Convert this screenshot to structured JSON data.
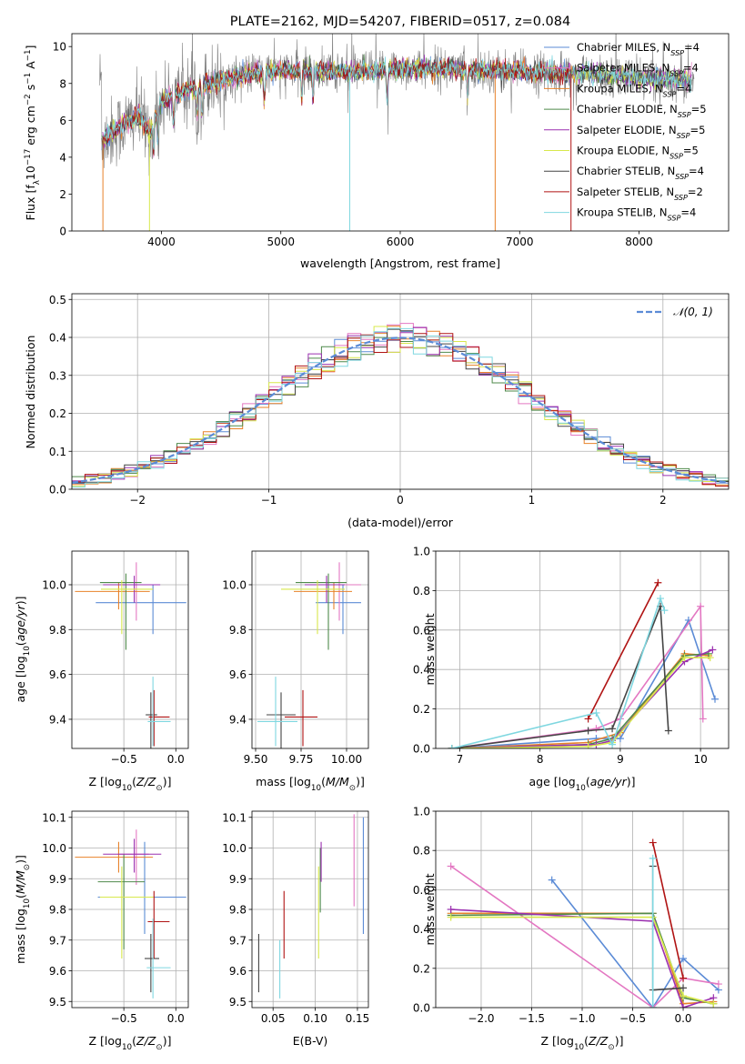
{
  "colors": {
    "Chabrier MILES": "#5b8bd6",
    "Salpeter MILES": "#e377c2",
    "Kroupa MILES": "#e8822a",
    "Chabrier ELODIE": "#4f8a4b",
    "Salpeter ELODIE": "#9b30b0",
    "Kroupa ELODIE": "#d8e84c",
    "Chabrier STELIB": "#444444",
    "Salpeter STELIB": "#b01313",
    "Kroupa STELIB": "#7fd7e0",
    "data": "#808080",
    "gaussian": "#5b8bd6",
    "grid": "#b0b0b0"
  },
  "chart_data": [
    {
      "id": "spectrum",
      "type": "line",
      "title": "PLATE=2162, MJD=54207, FIBERID=0517, z=0.084",
      "xlabel": "wavelength [Angstrom, rest frame]",
      "ylabel": "Flux [f_λ10^-17 erg cm^-2 s^-1 A^-1]",
      "xlim": [
        3250,
        8750
      ],
      "ylim": [
        0,
        10.7
      ],
      "xticks": [
        4000,
        5000,
        6000,
        7000,
        8000
      ],
      "yticks": [
        0,
        2,
        4,
        6,
        8,
        10
      ],
      "grid": false,
      "legend_position": "top-right",
      "legend": [
        {
          "model": "Chabrier MILES",
          "nssp": "4"
        },
        {
          "model": "Salpeter MILES",
          "nssp": "4"
        },
        {
          "model": "Kroupa MILES",
          "nssp": "4"
        },
        {
          "model": "Chabrier ELODIE",
          "nssp": "5"
        },
        {
          "model": "Salpeter ELODIE",
          "nssp": "5"
        },
        {
          "model": "Kroupa ELODIE",
          "nssp": "5"
        },
        {
          "model": "Chabrier STELIB",
          "nssp": "4"
        },
        {
          "model": "Salpeter STELIB",
          "nssp": "2"
        },
        {
          "model": "Kroupa STELIB",
          "nssp": "4"
        }
      ],
      "continuum": {
        "x": [
          3500,
          3600,
          3700,
          3800,
          3900,
          4000,
          4100,
          4200,
          4300,
          4500,
          4700,
          5000,
          5300,
          5600,
          6000,
          6400,
          6800,
          7200,
          7600,
          8000,
          8400
        ],
        "y": [
          4.9,
          5.4,
          5.8,
          6.3,
          5.4,
          7.0,
          7.3,
          7.6,
          7.8,
          8.2,
          8.5,
          8.7,
          8.7,
          8.6,
          8.8,
          8.8,
          8.7,
          8.6,
          8.5,
          8.3,
          8.2
        ]
      },
      "data_series_x_range": [
        3480,
        8460
      ]
    },
    {
      "id": "residual_histogram",
      "type": "bar",
      "xlabel": "(data-model)/error",
      "ylabel": "Normed distribution",
      "xlim": [
        -2.5,
        2.5
      ],
      "ylim": [
        0,
        0.515
      ],
      "xticks": [
        -2,
        -1,
        0,
        1,
        2
      ],
      "xtick_labels": [
        "−2",
        "−1",
        "0",
        "1",
        "2"
      ],
      "yticks": [
        0.0,
        0.1,
        0.2,
        0.3,
        0.4,
        0.5
      ],
      "grid": true,
      "legend_position": "top-right",
      "legend": [
        "𝒩(0, 1)"
      ],
      "bin_width": 0.1,
      "gaussian": {
        "mean": 0,
        "sigma": 1
      }
    },
    {
      "id": "age_vs_Z",
      "type": "scatter",
      "xlabel": "Z [log10(Z/Z_⊙)]",
      "ylabel": "age  [log10(age/yr)]",
      "xlim": [
        -1.0,
        0.12
      ],
      "ylim": [
        9.27,
        10.15
      ],
      "xticks": [
        -0.5,
        0.0
      ],
      "xtick_labels": [
        "−0.5",
        "0.0"
      ],
      "yticks": [
        9.4,
        9.6,
        9.8,
        10.0
      ],
      "grid": true,
      "points": [
        {
          "series": "Chabrier MILES",
          "x": -0.22,
          "y": 9.92,
          "xerr": [
            0.55,
            0.32
          ],
          "yerr": [
            0.14,
            0.08
          ]
        },
        {
          "series": "Salpeter MILES",
          "x": -0.38,
          "y": 10.0,
          "xerr": [
            0.18,
            0.12
          ],
          "yerr": [
            0.16,
            0.1
          ]
        },
        {
          "series": "Kroupa MILES",
          "x": -0.55,
          "y": 9.97,
          "xerr": [
            0.42,
            0.3
          ],
          "yerr": [
            0.08,
            0.04
          ]
        },
        {
          "series": "Chabrier ELODIE",
          "x": -0.48,
          "y": 10.01,
          "xerr": [
            0.25,
            0.15
          ],
          "yerr": [
            0.3,
            0.04
          ]
        },
        {
          "series": "Salpeter ELODIE",
          "x": -0.4,
          "y": 10.0,
          "xerr": [
            0.3,
            0.25
          ],
          "yerr": [
            0.08,
            0.04
          ]
        },
        {
          "series": "Kroupa ELODIE",
          "x": -0.52,
          "y": 9.98,
          "xerr": [
            0.2,
            0.3
          ],
          "yerr": [
            0.2,
            0.04
          ]
        },
        {
          "series": "Chabrier STELIB",
          "x": -0.24,
          "y": 9.42,
          "xerr": [
            0.05,
            0.06
          ],
          "yerr": [
            0.16,
            0.1
          ]
        },
        {
          "series": "Salpeter STELIB",
          "x": -0.21,
          "y": 9.41,
          "xerr": [
            0.05,
            0.15
          ],
          "yerr": [
            0.13,
            0.12
          ]
        },
        {
          "series": "Kroupa STELIB",
          "x": -0.22,
          "y": 9.39,
          "xerr": [
            0.05,
            0.17
          ],
          "yerr": [
            0.11,
            0.2
          ]
        }
      ]
    },
    {
      "id": "age_vs_mass",
      "type": "scatter",
      "xlabel": "mass [log10(M/M_⊙)]",
      "ylabel": "",
      "xlim": [
        9.48,
        10.12
      ],
      "ylim": [
        9.27,
        10.15
      ],
      "xticks": [
        9.5,
        9.75,
        10.0
      ],
      "xtick_labels": [
        "9.50",
        "9.75",
        "10.00"
      ],
      "yticks": [
        9.4,
        9.6,
        9.8,
        10.0
      ],
      "grid": true,
      "points": [
        {
          "series": "Chabrier MILES",
          "x": 9.98,
          "y": 9.92,
          "xerr": [
            0.15,
            0.1
          ],
          "yerr": [
            0.14,
            0.08
          ]
        },
        {
          "series": "Salpeter MILES",
          "x": 9.96,
          "y": 10.0,
          "xerr": [
            0.12,
            0.12
          ],
          "yerr": [
            0.16,
            0.1
          ]
        },
        {
          "series": "Kroupa MILES",
          "x": 9.93,
          "y": 9.97,
          "xerr": [
            0.22,
            0.1
          ],
          "yerr": [
            0.08,
            0.04
          ]
        },
        {
          "series": "Chabrier ELODIE",
          "x": 9.9,
          "y": 10.01,
          "xerr": [
            0.18,
            0.1
          ],
          "yerr": [
            0.3,
            0.04
          ]
        },
        {
          "series": "Salpeter ELODIE",
          "x": 9.89,
          "y": 10.0,
          "xerr": [
            0.12,
            0.1
          ],
          "yerr": [
            0.08,
            0.04
          ]
        },
        {
          "series": "Kroupa ELODIE",
          "x": 9.84,
          "y": 9.98,
          "xerr": [
            0.2,
            0.15
          ],
          "yerr": [
            0.2,
            0.04
          ]
        },
        {
          "series": "Chabrier STELIB",
          "x": 9.64,
          "y": 9.42,
          "xerr": [
            0.08,
            0.08
          ],
          "yerr": [
            0.16,
            0.1
          ]
        },
        {
          "series": "Salpeter STELIB",
          "x": 9.76,
          "y": 9.41,
          "xerr": [
            0.1,
            0.08
          ],
          "yerr": [
            0.13,
            0.12
          ]
        },
        {
          "series": "Kroupa STELIB",
          "x": 9.61,
          "y": 9.39,
          "xerr": [
            0.1,
            0.12
          ],
          "yerr": [
            0.11,
            0.2
          ]
        }
      ]
    },
    {
      "id": "weight_vs_age",
      "type": "line",
      "xlabel": "age  [log10(age/yr)]",
      "ylabel": "mass weight",
      "xlim": [
        6.7,
        10.35
      ],
      "ylim": [
        0,
        1.0
      ],
      "xticks": [
        7,
        8,
        9,
        10
      ],
      "yticks": [
        0.0,
        0.2,
        0.4,
        0.6,
        0.8,
        1.0
      ],
      "grid": true,
      "series": [
        {
          "name": "Chabrier MILES",
          "x": [
            6.9,
            8.7,
            9.0,
            9.85,
            10.18
          ],
          "y": [
            0.0,
            0.05,
            0.05,
            0.65,
            0.25
          ]
        },
        {
          "name": "Salpeter MILES",
          "x": [
            6.9,
            8.7,
            9.0,
            10.0,
            10.03
          ],
          "y": [
            0.0,
            0.1,
            0.15,
            0.72,
            0.15
          ]
        },
        {
          "name": "Kroupa MILES",
          "x": [
            6.9,
            8.6,
            9.0,
            9.8,
            10.1
          ],
          "y": [
            0.0,
            0.03,
            0.08,
            0.48,
            0.47
          ]
        },
        {
          "name": "Chabrier ELODIE",
          "x": [
            6.9,
            8.6,
            8.9,
            9.8,
            10.1
          ],
          "y": [
            0.0,
            0.02,
            0.05,
            0.47,
            0.48
          ]
        },
        {
          "name": "Salpeter ELODIE",
          "x": [
            6.9,
            8.7,
            8.9,
            9.8,
            10.15
          ],
          "y": [
            0.0,
            0.02,
            0.04,
            0.44,
            0.5
          ]
        },
        {
          "name": "Kroupa ELODIE",
          "x": [
            6.9,
            8.6,
            8.9,
            9.8,
            10.12
          ],
          "y": [
            0.0,
            0.01,
            0.03,
            0.46,
            0.46
          ]
        },
        {
          "name": "Chabrier STELIB",
          "x": [
            6.9,
            8.6,
            8.9,
            9.5,
            9.6
          ],
          "y": [
            0.0,
            0.09,
            0.1,
            0.72,
            0.09
          ]
        },
        {
          "name": "Salpeter STELIB",
          "x": [
            8.6,
            9.47
          ],
          "y": [
            0.15,
            0.84
          ]
        },
        {
          "name": "Kroupa STELIB",
          "x": [
            6.9,
            8.7,
            8.9,
            9.5,
            9.55
          ],
          "y": [
            0.0,
            0.18,
            0.02,
            0.76,
            0.7
          ]
        }
      ]
    },
    {
      "id": "mass_vs_Z",
      "type": "scatter",
      "xlabel": "Z [log10(Z/Z_⊙)]",
      "ylabel": "mass [log10(M/M_⊙)]",
      "xlim": [
        -1.0,
        0.12
      ],
      "ylim": [
        9.48,
        10.12
      ],
      "xticks": [
        -0.5,
        0.0
      ],
      "xtick_labels": [
        "−0.5",
        "0.0"
      ],
      "yticks": [
        9.5,
        9.6,
        9.7,
        9.8,
        9.9,
        10.0,
        10.1
      ],
      "grid": true,
      "points": [
        {
          "series": "Chabrier MILES",
          "x": -0.3,
          "y": 9.84,
          "xerr": [
            0.45,
            0.4
          ],
          "yerr": [
            0.12,
            0.18
          ]
        },
        {
          "series": "Salpeter MILES",
          "x": -0.38,
          "y": 9.98,
          "xerr": [
            0.18,
            0.12
          ],
          "yerr": [
            0.1,
            0.08
          ]
        },
        {
          "series": "Kroupa MILES",
          "x": -0.55,
          "y": 9.97,
          "xerr": [
            0.42,
            0.33
          ],
          "yerr": [
            0.05,
            0.05
          ]
        },
        {
          "series": "Chabrier ELODIE",
          "x": -0.5,
          "y": 9.89,
          "xerr": [
            0.25,
            0.2
          ],
          "yerr": [
            0.22,
            0.09
          ]
        },
        {
          "series": "Salpeter ELODIE",
          "x": -0.4,
          "y": 9.98,
          "xerr": [
            0.3,
            0.26
          ],
          "yerr": [
            0.06,
            0.05
          ]
        },
        {
          "series": "Kroupa ELODIE",
          "x": -0.52,
          "y": 9.84,
          "xerr": [
            0.21,
            0.31
          ],
          "yerr": [
            0.2,
            0.1
          ]
        },
        {
          "series": "Chabrier STELIB",
          "x": -0.24,
          "y": 9.64,
          "xerr": [
            0.06,
            0.08
          ],
          "yerr": [
            0.11,
            0.08
          ]
        },
        {
          "series": "Salpeter STELIB",
          "x": -0.21,
          "y": 9.76,
          "xerr": [
            0.06,
            0.15
          ],
          "yerr": [
            0.12,
            0.1
          ]
        },
        {
          "series": "Kroupa STELIB",
          "x": -0.22,
          "y": 9.61,
          "xerr": [
            0.06,
            0.17
          ],
          "yerr": [
            0.1,
            0.16
          ]
        }
      ]
    },
    {
      "id": "mass_vs_ebv",
      "type": "scatter",
      "xlabel": "E(B-V)",
      "ylabel": "",
      "xlim": [
        0.025,
        0.163
      ],
      "ylim": [
        9.48,
        10.12
      ],
      "xticks": [
        0.05,
        0.1,
        0.15
      ],
      "xtick_labels": [
        "0.05",
        "0.10",
        "0.15"
      ],
      "yticks": [
        9.5,
        9.6,
        9.7,
        9.8,
        9.9,
        10.0,
        10.1
      ],
      "grid": true,
      "points": [
        {
          "series": "Chabrier MILES",
          "x": 0.157,
          "y": 9.84,
          "yerr": [
            0.12,
            0.26
          ]
        },
        {
          "series": "Salpeter MILES",
          "x": 0.146,
          "y": 9.98,
          "yerr": [
            0.17,
            0.13
          ]
        },
        {
          "series": "Chabrier ELODIE",
          "x": 0.106,
          "y": 9.89,
          "yerr": [
            0.1,
            0.11
          ]
        },
        {
          "series": "Salpeter ELODIE",
          "x": 0.107,
          "y": 9.98,
          "yerr": [
            0.09,
            0.04
          ]
        },
        {
          "series": "Kroupa ELODIE",
          "x": 0.104,
          "y": 9.84,
          "yerr": [
            0.2,
            0.1
          ]
        },
        {
          "series": "Chabrier STELIB",
          "x": 0.033,
          "y": 9.64,
          "yerr": [
            0.11,
            0.08
          ]
        },
        {
          "series": "Salpeter STELIB",
          "x": 0.063,
          "y": 9.76,
          "yerr": [
            0.12,
            0.1
          ]
        },
        {
          "series": "Kroupa STELIB",
          "x": 0.058,
          "y": 9.61,
          "yerr": [
            0.1,
            0.09
          ]
        }
      ]
    },
    {
      "id": "weight_vs_Z",
      "type": "line",
      "xlabel": "Z [log10(Z/Z_⊙)]",
      "ylabel": "mass weight",
      "xlim": [
        -2.45,
        0.45
      ],
      "ylim": [
        0,
        1.0
      ],
      "xticks": [
        -2.0,
        -1.5,
        -1.0,
        -0.5,
        0.0
      ],
      "xtick_labels": [
        "−2.0",
        "−1.5",
        "−1.0",
        "−0.5",
        "0.0"
      ],
      "yticks": [
        0.0,
        0.2,
        0.4,
        0.6,
        0.8,
        1.0
      ],
      "grid": true,
      "series": [
        {
          "name": "Chabrier MILES",
          "x": [
            -1.3,
            -0.3,
            0.0,
            0.35
          ],
          "y": [
            0.65,
            0.0,
            0.25,
            0.09
          ]
        },
        {
          "name": "Salpeter MILES",
          "x": [
            -2.3,
            -0.3,
            0.0,
            0.35
          ],
          "y": [
            0.72,
            0.0,
            0.15,
            0.12
          ]
        },
        {
          "name": "Kroupa MILES",
          "x": [
            -2.3,
            -0.3,
            0.0,
            0.3
          ],
          "y": [
            0.48,
            0.48,
            0.02,
            0.03
          ]
        },
        {
          "name": "Chabrier ELODIE",
          "x": [
            -2.3,
            -0.3,
            0.0,
            0.3
          ],
          "y": [
            0.47,
            0.48,
            0.05,
            0.02
          ]
        },
        {
          "name": "Salpeter ELODIE",
          "x": [
            -2.3,
            -0.3,
            0.0,
            0.3
          ],
          "y": [
            0.5,
            0.44,
            0.0,
            0.05
          ]
        },
        {
          "name": "Kroupa ELODIE",
          "x": [
            -2.3,
            -0.3,
            0.0,
            0.3
          ],
          "y": [
            0.46,
            0.46,
            0.06,
            0.02
          ]
        },
        {
          "name": "Chabrier STELIB",
          "x": [
            -0.3,
            -0.3,
            0.0
          ],
          "y": [
            0.72,
            0.09,
            0.1
          ]
        },
        {
          "name": "Salpeter STELIB",
          "x": [
            -0.3,
            0.0
          ],
          "y": [
            0.84,
            0.15
          ]
        },
        {
          "name": "Kroupa STELIB",
          "x": [
            -0.3,
            -0.3
          ],
          "y": [
            0.76,
            0.0
          ]
        }
      ]
    }
  ]
}
